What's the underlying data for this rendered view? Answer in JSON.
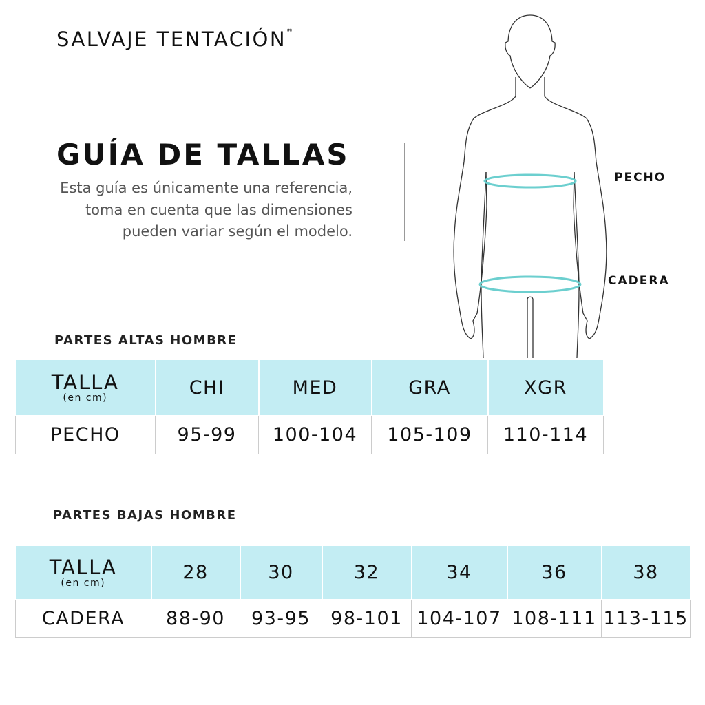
{
  "brand": {
    "name": "SALVAJE TENTACIÓN",
    "mark": "®"
  },
  "title": "GUÍA DE TALLAS",
  "description": "Esta guía es únicamente una referencia, toma en cuenta que las dimensiones pueden variar según el modelo.",
  "figure": {
    "labels": {
      "chest": "PECHO",
      "hip": "CADERA"
    },
    "ring_color": "#6ccfcf"
  },
  "colors": {
    "header_bg": "#c3edf3"
  },
  "upper": {
    "section_title": "PARTES ALTAS HOMBRE",
    "header_label": "TALLA",
    "header_sub": "(en cm)",
    "sizes": [
      "CHI",
      "MED",
      "GRA",
      "XGR"
    ],
    "row_label": "PECHO",
    "values": [
      "95-99",
      "100-104",
      "105-109",
      "110-114"
    ]
  },
  "lower": {
    "section_title": "PARTES BAJAS HOMBRE",
    "header_label": "TALLA",
    "header_sub": "(en cm)",
    "sizes": [
      "28",
      "30",
      "32",
      "34",
      "36",
      "38"
    ],
    "row_label": "CADERA",
    "values": [
      "88-90",
      "93-95",
      "98-101",
      "104-107",
      "108-111",
      "113-115"
    ]
  }
}
